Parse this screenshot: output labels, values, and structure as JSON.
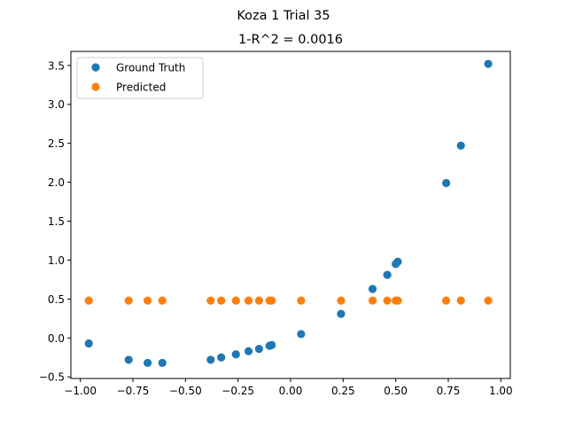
{
  "figure": {
    "suptitle": "Koza 1 Trial 35"
  },
  "chart_data": {
    "type": "scatter",
    "title": "1-R^2 = 0.0016",
    "xlabel": "",
    "ylabel": "",
    "xlim": [
      -1.045,
      1.045
    ],
    "ylim": [
      -0.52,
      3.68
    ],
    "x_ticks": [
      -1.0,
      -0.75,
      -0.5,
      -0.25,
      0.0,
      0.25,
      0.5,
      0.75,
      1.0
    ],
    "x_tick_labels": [
      "−1.00",
      "−0.75",
      "−0.50",
      "−0.25",
      "0.00",
      "0.25",
      "0.50",
      "0.75",
      "1.00"
    ],
    "y_ticks": [
      -0.5,
      0.0,
      0.5,
      1.0,
      1.5,
      2.0,
      2.5,
      3.0,
      3.5
    ],
    "y_tick_labels": [
      "−0.5",
      "0.0",
      "0.5",
      "1.0",
      "1.5",
      "2.0",
      "2.5",
      "3.0",
      "3.5"
    ],
    "grid": false,
    "legend_position": "top-left",
    "series": [
      {
        "name": "Ground Truth",
        "color": "#1f77b4",
        "points": [
          [
            -0.96,
            -0.07
          ],
          [
            -0.77,
            -0.28
          ],
          [
            -0.68,
            -0.32
          ],
          [
            -0.61,
            -0.32
          ],
          [
            -0.38,
            -0.28
          ],
          [
            -0.33,
            -0.25
          ],
          [
            -0.26,
            -0.21
          ],
          [
            -0.2,
            -0.17
          ],
          [
            -0.15,
            -0.14
          ],
          [
            -0.1,
            -0.1
          ],
          [
            -0.09,
            -0.09
          ],
          [
            0.05,
            0.05
          ],
          [
            0.24,
            0.31
          ],
          [
            0.39,
            0.63
          ],
          [
            0.46,
            0.81
          ],
          [
            0.5,
            0.95
          ],
          [
            0.51,
            0.98
          ],
          [
            0.74,
            1.99
          ],
          [
            0.81,
            2.47
          ],
          [
            0.94,
            3.52
          ]
        ]
      },
      {
        "name": "Predicted",
        "color": "#ff7f0e",
        "points": [
          [
            -0.96,
            0.48
          ],
          [
            -0.77,
            0.48
          ],
          [
            -0.68,
            0.48
          ],
          [
            -0.61,
            0.48
          ],
          [
            -0.38,
            0.48
          ],
          [
            -0.33,
            0.48
          ],
          [
            -0.26,
            0.48
          ],
          [
            -0.2,
            0.48
          ],
          [
            -0.15,
            0.48
          ],
          [
            -0.1,
            0.48
          ],
          [
            -0.09,
            0.48
          ],
          [
            0.05,
            0.48
          ],
          [
            0.24,
            0.48
          ],
          [
            0.39,
            0.48
          ],
          [
            0.46,
            0.48
          ],
          [
            0.5,
            0.48
          ],
          [
            0.51,
            0.48
          ],
          [
            0.74,
            0.48
          ],
          [
            0.81,
            0.48
          ],
          [
            0.94,
            0.48
          ]
        ]
      }
    ]
  }
}
